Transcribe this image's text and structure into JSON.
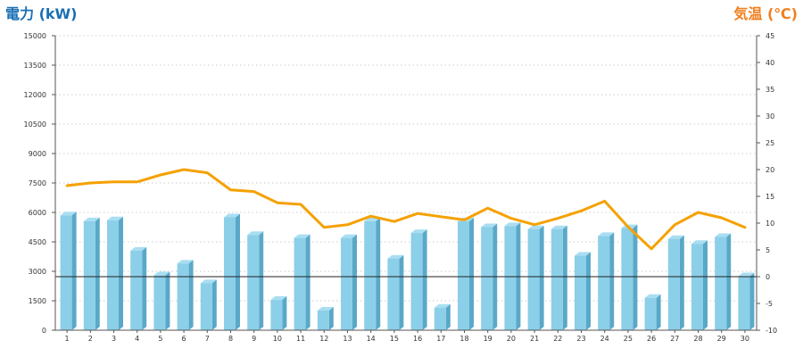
{
  "chart_data": {
    "type": "bar",
    "y_left_title": "電力 (kW)",
    "y_right_title": "気温 (℃)",
    "colors": {
      "left_title": "#1a6fb5",
      "right_title": "#f07f1e",
      "bar_front": "#8ccfe8",
      "bar_side": "#5aa8c8",
      "bar_top": "#a9def2",
      "line": "#f5a100"
    },
    "grid": true,
    "y_left": {
      "min": 0,
      "max": 15000,
      "ticks": [
        "0",
        "1500",
        "3000",
        "4500",
        "6000",
        "7500",
        "9000",
        "10500",
        "12000",
        "13500",
        "15000"
      ]
    },
    "y_right": {
      "min": -10,
      "max": 45,
      "ticks": [
        "-10",
        "-5",
        "0",
        "5",
        "10",
        "15",
        "20",
        "25",
        "30",
        "35",
        "40",
        "45"
      ]
    },
    "categories": [
      "1",
      "2",
      "3",
      "4",
      "5",
      "6",
      "7",
      "8",
      "9",
      "10",
      "11",
      "12",
      "13",
      "14",
      "15",
      "16",
      "17",
      "18",
      "19",
      "20",
      "21",
      "22",
      "23",
      "24",
      "25",
      "26",
      "27",
      "28",
      "29",
      "30"
    ],
    "series": [
      {
        "kind": "bar",
        "axis": "left",
        "values": [
          5850,
          5550,
          5600,
          4050,
          2800,
          3400,
          2400,
          5750,
          4850,
          1550,
          4700,
          1000,
          4700,
          5550,
          3650,
          4950,
          1150,
          5550,
          5250,
          5300,
          5150,
          5150,
          3800,
          4800,
          5200,
          1650,
          4650,
          4400,
          4750,
          2750
        ]
      },
      {
        "kind": "line",
        "axis": "right",
        "values": [
          17.0,
          17.5,
          17.7,
          17.7,
          19.0,
          20.0,
          19.4,
          16.2,
          15.9,
          13.8,
          13.5,
          9.2,
          9.7,
          11.3,
          10.3,
          11.8,
          11.2,
          10.6,
          12.8,
          10.9,
          9.7,
          10.9,
          12.3,
          14.1,
          9.3,
          5.2,
          9.7,
          12.0,
          11.0,
          9.2
        ]
      }
    ]
  }
}
